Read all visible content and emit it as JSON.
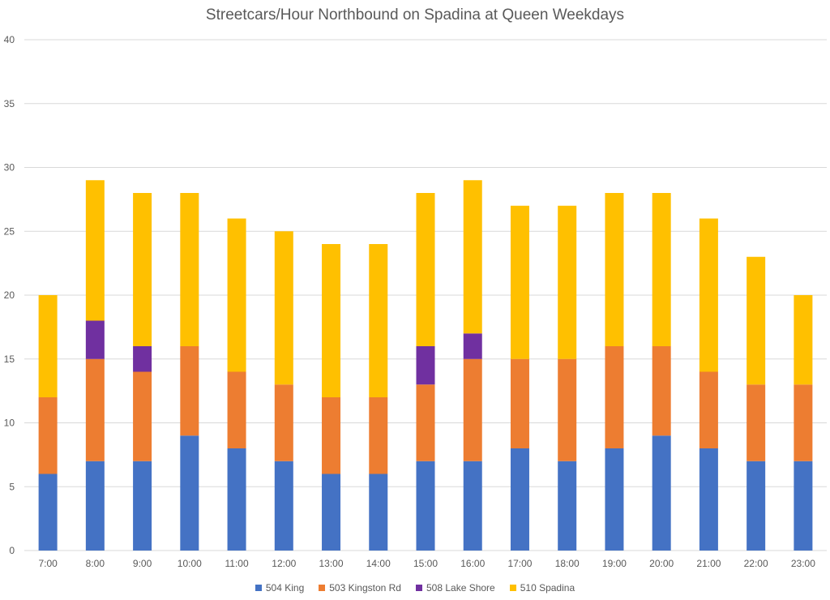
{
  "chart_data": {
    "type": "bar",
    "stacked": true,
    "title": "Streetcars/Hour Northbound on Spadina at Queen Weekdays",
    "xlabel": "",
    "ylabel": "",
    "ylim": [
      0,
      40
    ],
    "yticks": [
      0,
      5,
      10,
      15,
      20,
      25,
      30,
      35,
      40
    ],
    "grid": true,
    "legend_position": "bottom",
    "categories": [
      "7:00",
      "8:00",
      "9:00",
      "10:00",
      "11:00",
      "12:00",
      "13:00",
      "14:00",
      "15:00",
      "16:00",
      "17:00",
      "18:00",
      "19:00",
      "20:00",
      "21:00",
      "22:00",
      "23:00"
    ],
    "series": [
      {
        "name": "504 King",
        "color": "#4472C4",
        "values": [
          6,
          7,
          7,
          9,
          8,
          7,
          6,
          6,
          7,
          7,
          8,
          7,
          8,
          9,
          8,
          7,
          7
        ]
      },
      {
        "name": "503 Kingston Rd",
        "color": "#ED7D31",
        "values": [
          6,
          8,
          7,
          7,
          6,
          6,
          6,
          6,
          6,
          8,
          7,
          8,
          8,
          7,
          6,
          6,
          6
        ]
      },
      {
        "name": "508 Lake Shore",
        "color": "#7030A0",
        "values": [
          0,
          3,
          2,
          0,
          0,
          0,
          0,
          0,
          3,
          2,
          0,
          0,
          0,
          0,
          0,
          0,
          0
        ]
      },
      {
        "name": "510 Spadina",
        "color": "#FFC000",
        "values": [
          8,
          11,
          12,
          12,
          12,
          12,
          12,
          12,
          12,
          12,
          12,
          12,
          12,
          12,
          12,
          10,
          7
        ]
      }
    ]
  },
  "colors": {
    "grid": "#d9d9d9",
    "axis_text": "#595959"
  }
}
